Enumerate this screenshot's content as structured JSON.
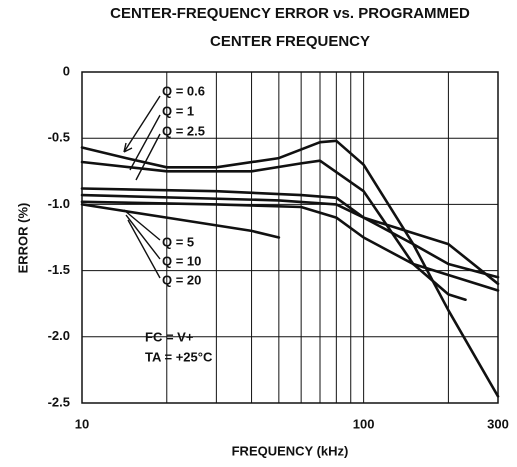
{
  "chart_data": {
    "type": "line",
    "title": [
      "CENTER-FREQUENCY ERROR vs. PROGRAMMED",
      "CENTER FREQUENCY"
    ],
    "xlabel": "FREQUENCY (kHz)",
    "ylabel": "ERROR (%)",
    "xscale": "log",
    "xlim": [
      10,
      300
    ],
    "xticks": [
      10,
      100,
      300
    ],
    "xgrid": [
      20,
      30,
      40,
      50,
      60,
      70,
      80,
      90,
      200
    ],
    "ylim": [
      -2.5,
      0
    ],
    "yticks": [
      0,
      -0.5,
      {
        "value": -1,
        "label": "-1.0"
      },
      -1.5,
      {
        "value": -2,
        "label": "-2.0"
      },
      -2.5
    ],
    "grid": true,
    "series": [
      {
        "name": "Q = 0.6",
        "color": "#111111",
        "x": [
          10,
          15,
          20,
          30,
          50,
          70,
          80,
          100,
          150,
          200,
          300
        ],
        "values": [
          -0.57,
          -0.66,
          -0.72,
          -0.72,
          -0.65,
          -0.53,
          -0.52,
          -0.7,
          -1.3,
          -1.8,
          -2.45
        ]
      },
      {
        "name": "Q = 1",
        "color": "#111111",
        "x": [
          10,
          20,
          40,
          60,
          70,
          100,
          150,
          200,
          230
        ],
        "values": [
          -0.68,
          -0.75,
          -0.75,
          -0.69,
          -0.67,
          -0.9,
          -1.45,
          -1.68,
          -1.72
        ]
      },
      {
        "name": "Q = 2.5",
        "color": "#111111",
        "x": [
          10,
          30,
          60,
          80,
          100,
          150,
          200,
          300
        ],
        "values": [
          -0.88,
          -0.9,
          -0.93,
          -0.95,
          -1.1,
          -1.3,
          -1.45,
          -1.55
        ]
      },
      {
        "name": "Q = 5",
        "color": "#111111",
        "x": [
          10,
          50,
          80,
          100,
          200,
          300
        ],
        "values": [
          -0.93,
          -0.97,
          -1.0,
          -1.1,
          -1.3,
          -1.6
        ]
      },
      {
        "name": "Q = 10",
        "color": "#111111",
        "x": [
          10,
          30,
          60,
          80,
          100,
          150,
          300
        ],
        "values": [
          -0.98,
          -1.0,
          -1.02,
          -1.1,
          -1.25,
          -1.45,
          -1.65
        ]
      },
      {
        "name": "Q = 20",
        "color": "#111111",
        "x": [
          10,
          20,
          40,
          50
        ],
        "values": [
          -1.0,
          -1.1,
          -1.2,
          -1.25
        ]
      }
    ],
    "annotations": [
      "FC = V+",
      "TA = +25°C"
    ]
  }
}
